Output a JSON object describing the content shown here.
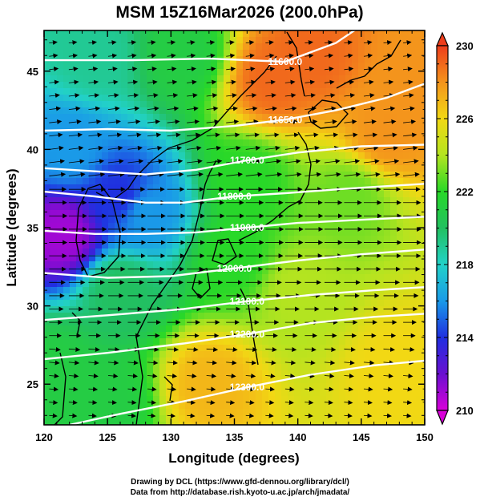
{
  "chart_data": {
    "type": "heatmap",
    "title": "MSM 15Z16Mar2026 (200.0hPa)",
    "xlabel": "Longitude (degrees)",
    "ylabel": "Latitude  (degrees)",
    "xlim": [
      120,
      150
    ],
    "ylim": [
      22.4,
      47.6
    ],
    "x_ticks": [
      120,
      125,
      130,
      135,
      140,
      145,
      150
    ],
    "y_ticks": [
      25,
      30,
      35,
      40,
      45
    ],
    "colorbar": {
      "range": [
        210,
        230
      ],
      "ticks": [
        210,
        214,
        218,
        222,
        226,
        230
      ],
      "extend": "both",
      "colormap": "rainbow (magenta-blue-cyan-green-yellow-orange-red)"
    },
    "temperature_field_approx": {
      "description": "shaded values read from the colorbar",
      "anchors": [
        {
          "lon": 121.5,
          "lat": 34.5,
          "value": 211
        },
        {
          "lon": 126,
          "lat": 37,
          "value": 214
        },
        {
          "lon": 122,
          "lat": 40,
          "value": 216
        },
        {
          "lon": 128,
          "lat": 36,
          "value": 216
        },
        {
          "lon": 124,
          "lat": 46,
          "value": 219
        },
        {
          "lon": 131,
          "lat": 46,
          "value": 221
        },
        {
          "lon": 138,
          "lat": 44.5,
          "value": 229
        },
        {
          "lon": 141,
          "lat": 46,
          "value": 229
        },
        {
          "lon": 147,
          "lat": 41,
          "value": 228
        },
        {
          "lon": 149,
          "lat": 44,
          "value": 228
        },
        {
          "lon": 144,
          "lat": 37,
          "value": 223
        },
        {
          "lon": 140,
          "lat": 31,
          "value": 224
        },
        {
          "lon": 148,
          "lat": 26,
          "value": 226
        },
        {
          "lon": 133,
          "lat": 25,
          "value": 227
        },
        {
          "lon": 125,
          "lat": 24,
          "value": 221
        },
        {
          "lon": 121,
          "lat": 26,
          "value": 221
        },
        {
          "lon": 126,
          "lat": 31,
          "value": 220
        },
        {
          "lon": 136,
          "lat": 38,
          "value": 222
        },
        {
          "lon": 135,
          "lat": 33,
          "value": 222
        }
      ]
    },
    "contours": [
      {
        "label": "11600.0",
        "points": [
          [
            120,
            45.7
          ],
          [
            127,
            45.7
          ],
          [
            133,
            45.8
          ],
          [
            139,
            45.6
          ],
          [
            143,
            46.8
          ],
          [
            147,
            49
          ]
        ]
      },
      {
        "label": "11650.0",
        "points": [
          [
            120,
            41.2
          ],
          [
            125,
            41.3
          ],
          [
            130,
            41.2
          ],
          [
            135,
            41.5
          ],
          [
            139,
            41.9
          ],
          [
            143,
            42.5
          ],
          [
            147,
            43.3
          ],
          [
            150,
            44.2
          ]
        ]
      },
      {
        "label": "11700.0",
        "points": [
          [
            120,
            38.8
          ],
          [
            124,
            38.6
          ],
          [
            128,
            38.4
          ],
          [
            132,
            38.7
          ],
          [
            136,
            39.3
          ],
          [
            140,
            39.8
          ],
          [
            145,
            40.2
          ],
          [
            150,
            40.3
          ]
        ]
      },
      {
        "label": "11800.0",
        "points": [
          [
            120,
            37.3
          ],
          [
            124,
            37.0
          ],
          [
            128,
            36.6
          ],
          [
            131,
            36.6
          ],
          [
            135,
            37.0
          ],
          [
            139,
            37.2
          ],
          [
            144,
            37.5
          ],
          [
            150,
            37.8
          ]
        ]
      },
      {
        "label": "11900.0",
        "points": [
          [
            120,
            34.8
          ],
          [
            124,
            34.6
          ],
          [
            128,
            34.6
          ],
          [
            132,
            34.7
          ],
          [
            136,
            35.0
          ],
          [
            140,
            35.3
          ],
          [
            145,
            35.5
          ],
          [
            150,
            35.7
          ]
        ]
      },
      {
        "label": "12000.0",
        "points": [
          [
            120,
            32.1
          ],
          [
            125,
            31.8
          ],
          [
            130,
            31.9
          ],
          [
            135,
            32.4
          ],
          [
            140,
            32.9
          ],
          [
            145,
            33.3
          ],
          [
            150,
            33.6
          ]
        ]
      },
      {
        "label": "12100.0",
        "points": [
          [
            120,
            29.1
          ],
          [
            125,
            29.4
          ],
          [
            131,
            29.8
          ],
          [
            136,
            30.3
          ],
          [
            141,
            30.7
          ],
          [
            146,
            31.0
          ],
          [
            150,
            31.2
          ]
        ]
      },
      {
        "label": "12200.0",
        "points": [
          [
            120,
            26.6
          ],
          [
            125,
            27.0
          ],
          [
            131,
            27.6
          ],
          [
            136,
            28.2
          ],
          [
            141,
            28.9
          ],
          [
            146,
            29.3
          ],
          [
            150,
            29.5
          ]
        ]
      },
      {
        "label": "12300.0",
        "points": [
          [
            122,
            22.4
          ],
          [
            126,
            23.1
          ],
          [
            131,
            23.9
          ],
          [
            136,
            24.8
          ],
          [
            141,
            25.6
          ],
          [
            146,
            26.2
          ],
          [
            150,
            26.5
          ]
        ]
      }
    ],
    "wind_vectors": "westerly jet, arrows pointing east, strongest between 30N and 40N"
  },
  "credits": {
    "line1": "Drawing by DCL (https://www.gfd-dennou.org/library/dcl/)",
    "line2": "Data from http://database.rish.kyoto-u.ac.jp/arch/jmadata/"
  }
}
